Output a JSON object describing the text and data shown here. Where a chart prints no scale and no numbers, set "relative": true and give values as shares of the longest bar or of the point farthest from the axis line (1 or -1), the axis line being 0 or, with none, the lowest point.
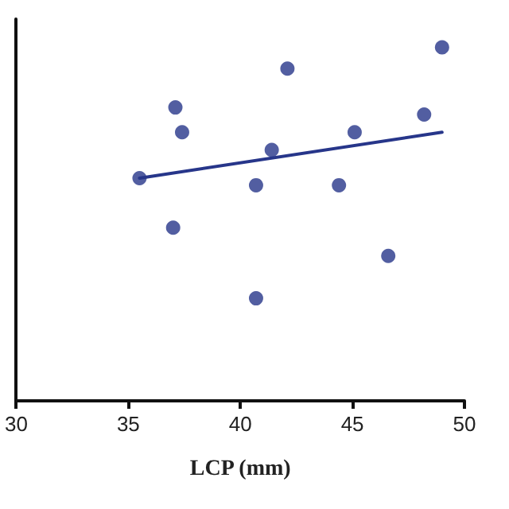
{
  "chart_data": {
    "type": "scatter",
    "xlabel": "LCP (mm)",
    "relative": true,
    "xlim": [
      30,
      50
    ],
    "xticks": [
      30,
      35,
      40,
      45,
      50
    ],
    "grid": false,
    "series": [
      {
        "color": "#27368a",
        "marker": "circle",
        "x": [
          35.5,
          37.1,
          37.4,
          37.0,
          40.7,
          40.7,
          41.4,
          42.1,
          44.4,
          45.1,
          46.6,
          48.2,
          49.0
        ],
        "values": [
          0.63,
          0.83,
          0.76,
          0.49,
          0.29,
          0.61,
          0.71,
          0.94,
          0.61,
          0.76,
          0.41,
          0.81,
          1
        ]
      },
      {
        "type": "line",
        "color": "#27368a",
        "x": [
          35.5,
          49.0
        ],
        "values": [
          0.63,
          0.76
        ],
        "marker": "none",
        "line_style": "solid"
      }
    ]
  }
}
